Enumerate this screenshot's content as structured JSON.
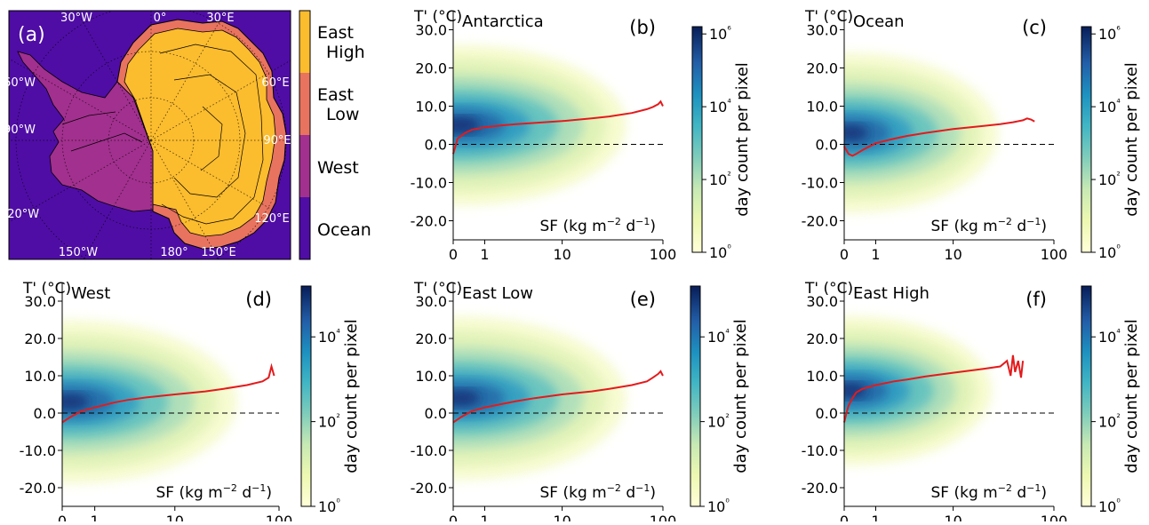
{
  "chart_data": [
    {
      "type": "map",
      "panel_label": "(a)",
      "lon_labels": [
        "30°W",
        "0°",
        "30°E",
        "60°W",
        "60°E",
        "90°W",
        "90°E",
        "120°W",
        "120°E",
        "150°W",
        "180°",
        "150°E"
      ],
      "region_legend": [
        {
          "label": "East High",
          "color": "#FBBC2E"
        },
        {
          "label": "East Low",
          "color": "#E8735F"
        },
        {
          "label": "West",
          "color": "#A2308E"
        },
        {
          "label": "Ocean",
          "color": "#4F0DA5"
        }
      ]
    },
    {
      "type": "heatmap",
      "panel_label": "(b)",
      "title": "Antarctica",
      "ylabel": "T' (°C)",
      "xlabel": "SF (kg m⁻² d⁻¹)",
      "yticks": [
        "30.0",
        "20.0",
        "10.0",
        "0.0",
        "-10.0",
        "-20.0"
      ],
      "xticks": [
        "0",
        "1",
        "10",
        "100"
      ],
      "colorbar": {
        "label": "day count per pixel",
        "ticks": [
          "10⁰",
          "10²",
          "10⁴",
          "10⁶"
        ],
        "tick_values": [
          0,
          2,
          4,
          6
        ],
        "log_max": 6.2
      },
      "density": {
        "center": 5,
        "spread_top": 26,
        "spread_bottom": 25,
        "peak": 1.0,
        "xmax": 100
      },
      "mean_line": {
        "name": "mean T'",
        "color": "#E41A1C",
        "x": [
          0,
          0.1,
          0.3,
          0.5,
          1,
          2,
          3,
          5,
          10,
          20,
          30,
          50,
          70,
          80,
          90,
          95,
          100
        ],
        "y": [
          -2.5,
          1.5,
          3,
          3.8,
          4.5,
          5,
          5.3,
          5.6,
          6.1,
          6.8,
          7.3,
          8.2,
          9.2,
          9.8,
          10.5,
          11.2,
          10
        ]
      }
    },
    {
      "type": "heatmap",
      "panel_label": "(c)",
      "title": "Ocean",
      "ylabel": "T' (°C)",
      "xlabel": "SF (kg m⁻² d⁻¹)",
      "yticks": [
        "30.0",
        "20.0",
        "10.0",
        "0.0",
        "-10.0",
        "-20.0"
      ],
      "xticks": [
        "0",
        "1",
        "10",
        "100"
      ],
      "colorbar": {
        "label": "day count per pixel",
        "ticks": [
          "10⁰",
          "10²",
          "10⁴",
          "10⁶"
        ],
        "tick_values": [
          0,
          2,
          4,
          6
        ],
        "log_max": 6.2
      },
      "density": {
        "center": 3,
        "spread_top": 24,
        "spread_bottom": 23,
        "peak": 0.95,
        "xmax": 60
      },
      "mean_line": {
        "name": "mean T'",
        "color": "#E41A1C",
        "x": [
          0,
          0.1,
          0.2,
          0.3,
          0.5,
          1,
          2,
          3,
          5,
          10,
          20,
          30,
          40,
          50,
          55,
          60,
          65
        ],
        "y": [
          -0.5,
          -2.5,
          -3,
          -2.5,
          -1.5,
          0.3,
          1.5,
          2.2,
          3,
          4,
          4.8,
          5.3,
          5.8,
          6.3,
          6.8,
          6.5,
          6
        ]
      }
    },
    {
      "type": "heatmap",
      "panel_label": "(d)",
      "title": "West",
      "ylabel": "T' (°C)",
      "xlabel": "SF (kg m⁻² d⁻¹)",
      "yticks": [
        "30.0",
        "20.0",
        "10.0",
        "0.0",
        "-10.0",
        "-20.0"
      ],
      "xticks": [
        "0",
        "1",
        "10",
        "100"
      ],
      "colorbar": {
        "label": "day count per pixel",
        "ticks": [
          "10⁰",
          "10²",
          "10⁴"
        ],
        "tick_values": [
          0,
          2,
          4
        ],
        "log_max": 5.2
      },
      "density": {
        "center": 3,
        "spread_top": 25,
        "spread_bottom": 24,
        "peak": 0.95,
        "xmax": 90
      },
      "mean_line": {
        "name": "mean T'",
        "color": "#E41A1C",
        "x": [
          0,
          0.2,
          0.5,
          1,
          2,
          3,
          5,
          10,
          20,
          30,
          50,
          70,
          80,
          85,
          90
        ],
        "y": [
          -2.5,
          -1,
          0.5,
          1.5,
          2.8,
          3.5,
          4.2,
          5,
          5.8,
          6.5,
          7.5,
          8.5,
          9.5,
          12.5,
          10
        ]
      }
    },
    {
      "type": "heatmap",
      "panel_label": "(e)",
      "title": "East Low",
      "ylabel": "T' (°C)",
      "xlabel": "SF (kg m⁻² d⁻¹)",
      "yticks": [
        "30.0",
        "20.0",
        "10.0",
        "0.0",
        "-10.0",
        "-20.0"
      ],
      "xticks": [
        "0",
        "1",
        "10",
        "100"
      ],
      "colorbar": {
        "label": "day count per pixel",
        "ticks": [
          "10⁰",
          "10²",
          "10⁴"
        ],
        "tick_values": [
          0,
          2,
          4
        ],
        "log_max": 5.2
      },
      "density": {
        "center": 4,
        "spread_top": 26,
        "spread_bottom": 24,
        "peak": 0.95,
        "xmax": 100
      },
      "mean_line": {
        "name": "mean T'",
        "color": "#E41A1C",
        "x": [
          0,
          0.2,
          0.5,
          1,
          2,
          3,
          5,
          10,
          20,
          30,
          50,
          70,
          80,
          90,
          95,
          100
        ],
        "y": [
          -2.5,
          -1,
          0.5,
          1.5,
          2.5,
          3.2,
          4,
          5,
          5.8,
          6.5,
          7.5,
          8.5,
          9.5,
          10.5,
          11.2,
          10
        ]
      }
    },
    {
      "type": "heatmap",
      "panel_label": "(f)",
      "title": "East High",
      "ylabel": "T' (°C)",
      "xlabel": "SF (kg m⁻² d⁻¹)",
      "yticks": [
        "30.0",
        "20.0",
        "10.0",
        "0.0",
        "-10.0",
        "-20.0"
      ],
      "xticks": [
        "0",
        "1",
        "10",
        "100"
      ],
      "colorbar": {
        "label": "day count per pixel",
        "ticks": [
          "10⁰",
          "10²",
          "10⁴"
        ],
        "tick_values": [
          0,
          2,
          4
        ],
        "log_max": 5.2
      },
      "density": {
        "center": 6,
        "spread_top": 26,
        "spread_bottom": 25,
        "peak": 1.0,
        "xmax": 50
      },
      "mean_line": {
        "name": "mean T'",
        "color": "#E41A1C",
        "x": [
          0,
          0.05,
          0.1,
          0.2,
          0.3,
          0.5,
          1,
          2,
          3,
          5,
          10,
          20,
          30,
          35,
          38,
          40,
          42,
          45,
          48,
          50
        ],
        "y": [
          -2.5,
          0,
          2,
          4,
          5.5,
          6.5,
          7.5,
          8.5,
          9,
          9.8,
          10.8,
          11.8,
          12.5,
          14,
          10,
          15.5,
          11,
          14,
          9.5,
          14
        ]
      }
    }
  ]
}
